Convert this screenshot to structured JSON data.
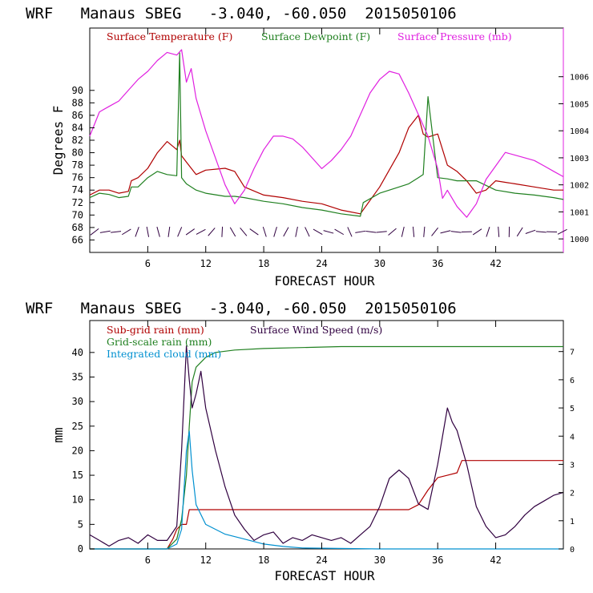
{
  "colors": {
    "temp": "#b00000",
    "dew": "#208020",
    "press": "#e020e0",
    "subgrid": "#b00000",
    "grid": "#208020",
    "cloud": "#0090d0",
    "wind": "#300040"
  },
  "chart_data": [
    {
      "type": "line",
      "title": "WRF   Manaus SBEG   -3.040, -60.050  2015050106",
      "xlabel": "FORECAST HOUR",
      "ylabel": "Degrees F",
      "xlim": [
        0,
        49
      ],
      "ylim": [
        64,
        100
      ],
      "y2lim": [
        999.5,
        1007.8
      ],
      "xticks": [
        6,
        12,
        18,
        24,
        30,
        36,
        42
      ],
      "yticks": [
        66,
        68,
        70,
        72,
        74,
        76,
        78,
        80,
        82,
        84,
        86,
        88,
        90
      ],
      "y2ticks": [
        1000,
        1001,
        1002,
        1003,
        1004,
        1005,
        1006
      ],
      "legend": [
        "Surface Temperature (F)",
        "Surface Dewpoint (F)",
        "Surface Pressure (mb)"
      ],
      "series": [
        {
          "name": "Surface Temperature (F)",
          "axis": "left",
          "x": [
            0,
            1,
            2,
            3,
            4,
            4.3,
            5,
            6,
            7,
            8,
            9,
            9.3,
            9.5,
            10,
            11,
            12,
            14,
            15,
            16,
            18,
            20,
            22,
            24,
            26,
            28,
            30,
            32,
            33,
            34,
            34.5,
            35,
            36,
            37,
            38,
            39,
            40,
            41,
            42,
            44,
            46,
            48,
            49
          ],
          "y": [
            73.2,
            74,
            74,
            73.5,
            73.8,
            75.5,
            76,
            77.5,
            80,
            81.8,
            80.5,
            82,
            79.5,
            78.5,
            76.5,
            77.2,
            77.5,
            77,
            74.5,
            73.2,
            72.8,
            72.2,
            71.8,
            70.8,
            70.2,
            74.5,
            80,
            84,
            86,
            83,
            82.5,
            83,
            78,
            77,
            75.5,
            73.5,
            74,
            75.5,
            75,
            74.5,
            74,
            74
          ]
        },
        {
          "name": "Surface Dewpoint (F)",
          "axis": "left",
          "x": [
            0,
            1,
            2,
            3,
            4,
            4.3,
            5,
            6,
            7,
            8,
            9,
            9.3,
            9.5,
            10,
            11,
            12,
            14,
            15,
            16,
            18,
            20,
            22,
            24,
            26,
            28,
            28.3,
            30,
            32,
            33,
            34,
            34.5,
            35,
            36,
            37,
            38,
            39,
            40,
            42,
            44,
            46,
            48,
            49
          ],
          "y": [
            72.8,
            73.5,
            73.3,
            72.8,
            73,
            74.5,
            74.5,
            76,
            77,
            76.5,
            76.3,
            96,
            76,
            75,
            74,
            73.5,
            73,
            73,
            72.8,
            72.2,
            71.8,
            71.2,
            70.8,
            70.2,
            69.8,
            72,
            73.5,
            74.5,
            75,
            76,
            76.5,
            89,
            76,
            75.8,
            75.5,
            75.5,
            75.5,
            74,
            73.5,
            73.2,
            72.8,
            72.5
          ]
        },
        {
          "name": "Surface Pressure (mb)",
          "axis": "right",
          "x": [
            0,
            1,
            2,
            3,
            4,
            5,
            6,
            7,
            8,
            9,
            9.5,
            10,
            10.5,
            11,
            12,
            13,
            14,
            15,
            16,
            17,
            18,
            19,
            20,
            21,
            22,
            23,
            24,
            25,
            26,
            27,
            28,
            29,
            30,
            31,
            32,
            33,
            34,
            35,
            36,
            36.5,
            37,
            38,
            39,
            40,
            41,
            42,
            43,
            44,
            45,
            46,
            47,
            48,
            49
          ],
          "y": [
            1003.8,
            1004.7,
            1004.9,
            1005.1,
            1005.5,
            1005.9,
            1006.2,
            1006.6,
            1006.9,
            1006.8,
            1007,
            1005.8,
            1006.3,
            1005.2,
            1004,
            1003,
            1002,
            1001.3,
            1001.8,
            1002.6,
            1003.3,
            1003.8,
            1003.8,
            1003.7,
            1003.4,
            1003,
            1002.6,
            1002.9,
            1003.3,
            1003.8,
            1004.6,
            1005.4,
            1005.9,
            1006.2,
            1006.1,
            1005.4,
            1004.6,
            1003.8,
            1002.6,
            1001.5,
            1001.8,
            1001.2,
            1000.8,
            1001.3,
            1002.2,
            1002.7,
            1003.2,
            1003.1,
            1003,
            1002.9,
            1002.7,
            1002.5,
            1002.3
          ]
        }
      ]
    },
    {
      "type": "line",
      "title": "WRF   Manaus SBEG   -3.040, -60.050  2015050106",
      "xlabel": "FORECAST HOUR",
      "ylabel": "mm",
      "xlim": [
        0,
        49
      ],
      "ylim": [
        0,
        46.5
      ],
      "y2lim": [
        0,
        8.1
      ],
      "xticks": [
        6,
        12,
        18,
        24,
        30,
        36,
        42
      ],
      "yticks": [
        0,
        5,
        10,
        15,
        20,
        25,
        30,
        35,
        40
      ],
      "y2ticks": [
        0,
        1,
        2,
        3,
        4,
        5,
        6,
        7
      ],
      "legend": [
        "Sub-grid rain (mm)",
        "Grid-scale rain (mm)",
        "Integrated cloud (mm)",
        "Surface Wind Speed (m/s)"
      ],
      "series": [
        {
          "name": "Sub-grid rain (mm)",
          "axis": "left",
          "x": [
            0,
            8,
            8.6,
            9,
            9.5,
            10,
            10.3,
            13,
            20,
            30,
            33,
            34,
            35,
            36,
            37,
            38,
            38.5,
            49
          ],
          "y": [
            0,
            0,
            2,
            4,
            5,
            5,
            8,
            8,
            8,
            8,
            8,
            9,
            12,
            14.5,
            15,
            15.5,
            18,
            18
          ]
        },
        {
          "name": "Grid-scale rain (mm)",
          "axis": "left",
          "x": [
            0,
            8,
            9,
            9.5,
            10,
            10.3,
            10.6,
            11,
            12,
            13,
            15,
            18,
            22,
            26,
            49
          ],
          "y": [
            0,
            0,
            2,
            6,
            15,
            25,
            34,
            37,
            39,
            40,
            40.5,
            40.8,
            41,
            41.2,
            41.2
          ]
        },
        {
          "name": "Integrated cloud (mm)",
          "axis": "left",
          "x": [
            0,
            8,
            9,
            9.5,
            10,
            10.3,
            10.6,
            11,
            12,
            13,
            14,
            16,
            18,
            20,
            22,
            30,
            49
          ],
          "y": [
            0,
            0,
            1,
            4,
            20,
            24,
            16,
            9,
            5,
            4,
            3,
            2,
            1,
            0.5,
            0.2,
            0,
            0
          ]
        },
        {
          "name": "Surface Wind Speed (m/s)",
          "axis": "right",
          "x": [
            0,
            1,
            2,
            3,
            4,
            5,
            6,
            7,
            8,
            9,
            9.5,
            10,
            10.3,
            10.6,
            11,
            11.5,
            12,
            13,
            14,
            15,
            16,
            17,
            18,
            19,
            20,
            21,
            22,
            23,
            24,
            25,
            26,
            27,
            28,
            29,
            30,
            31,
            32,
            33,
            34,
            35,
            36,
            37,
            37.5,
            38,
            39,
            40,
            41,
            42,
            43,
            44,
            45,
            46,
            47,
            48,
            49
          ],
          "y": [
            0.5,
            0.3,
            0.1,
            0.3,
            0.4,
            0.2,
            0.5,
            0.3,
            0.3,
            0.8,
            3.5,
            7.2,
            6,
            5,
            5.5,
            6.3,
            5,
            3.5,
            2.2,
            1.2,
            0.7,
            0.3,
            0.5,
            0.6,
            0.2,
            0.4,
            0.3,
            0.5,
            0.4,
            0.3,
            0.4,
            0.2,
            0.5,
            0.8,
            1.5,
            2.5,
            2.8,
            2.5,
            1.6,
            1.4,
            3,
            5,
            4.5,
            4.2,
            3,
            1.5,
            0.8,
            0.4,
            0.5,
            0.8,
            1.2,
            1.5,
            1.7,
            1.9,
            2
          ]
        }
      ]
    }
  ]
}
